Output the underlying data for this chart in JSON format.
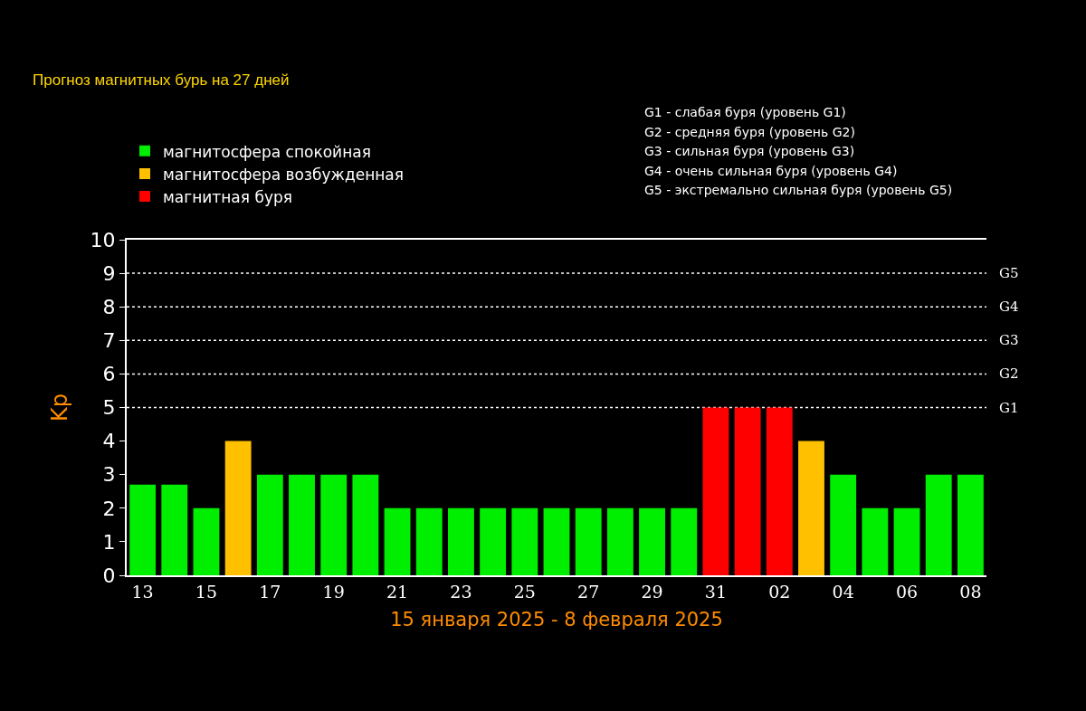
{
  "chart_data": {
    "type": "bar",
    "title": "Прогноз магнитных бурь на 27 дней",
    "xlabel": "15 января 2025 - 8 февраля 2025",
    "ylabel": "Kp",
    "categories": [
      "13",
      null,
      "15",
      null,
      "17",
      null,
      "19",
      null,
      "21",
      null,
      "23",
      null,
      "25",
      null,
      "27",
      null,
      "29",
      null,
      "31",
      null,
      "02",
      null,
      "04",
      null,
      "06",
      null,
      "08"
    ],
    "series": [
      {
        "name": "магнитосфера спокойная",
        "color": "#00ee00",
        "values": [
          2.7,
          2.7,
          2,
          null,
          3,
          3,
          3,
          3,
          2,
          2,
          2,
          2,
          2,
          2,
          2,
          2,
          2,
          2,
          null,
          null,
          null,
          null,
          3,
          2,
          2,
          3,
          3
        ]
      },
      {
        "name": "магнитосфера возбужденная",
        "color": "#ffc000",
        "values": [
          null,
          null,
          null,
          4,
          null,
          null,
          null,
          null,
          null,
          null,
          null,
          null,
          null,
          null,
          null,
          null,
          null,
          null,
          null,
          null,
          null,
          4,
          null,
          null,
          null,
          null,
          null
        ]
      },
      {
        "name": "магнитная буря",
        "color": "#ff0000",
        "values": [
          null,
          null,
          null,
          null,
          null,
          null,
          null,
          null,
          null,
          null,
          null,
          null,
          null,
          null,
          null,
          null,
          null,
          null,
          5,
          5,
          5,
          null,
          null,
          null,
          null,
          null,
          null
        ]
      }
    ],
    "ylim": [
      0,
      10
    ],
    "yticks": [
      0,
      1,
      2,
      3,
      4,
      5,
      6,
      7,
      8,
      9,
      10
    ],
    "ref_lines": [
      {
        "axis": "y",
        "value": 5,
        "label": "G1",
        "color": "#ffffff",
        "line_style": "dotted"
      },
      {
        "axis": "y",
        "value": 6,
        "label": "G2",
        "color": "#ffffff",
        "line_style": "dotted"
      },
      {
        "axis": "y",
        "value": 7,
        "label": "G3",
        "color": "#ffffff",
        "line_style": "dotted"
      },
      {
        "axis": "y",
        "value": 8,
        "label": "G4",
        "color": "#ffffff",
        "line_style": "dotted"
      },
      {
        "axis": "y",
        "value": 9,
        "label": "G5",
        "color": "#ffffff",
        "line_style": "dotted"
      }
    ],
    "annotations": [
      "G1 - слабая буря (уровень G1)",
      "G2 - средняя буря (уровень G2)",
      "G3 - сильная буря (уровень G3)",
      "G4 - очень сильная буря (уровень G4)",
      "G5 - экстремально сильная буря (уровень G5)"
    ],
    "legend": "top left"
  }
}
